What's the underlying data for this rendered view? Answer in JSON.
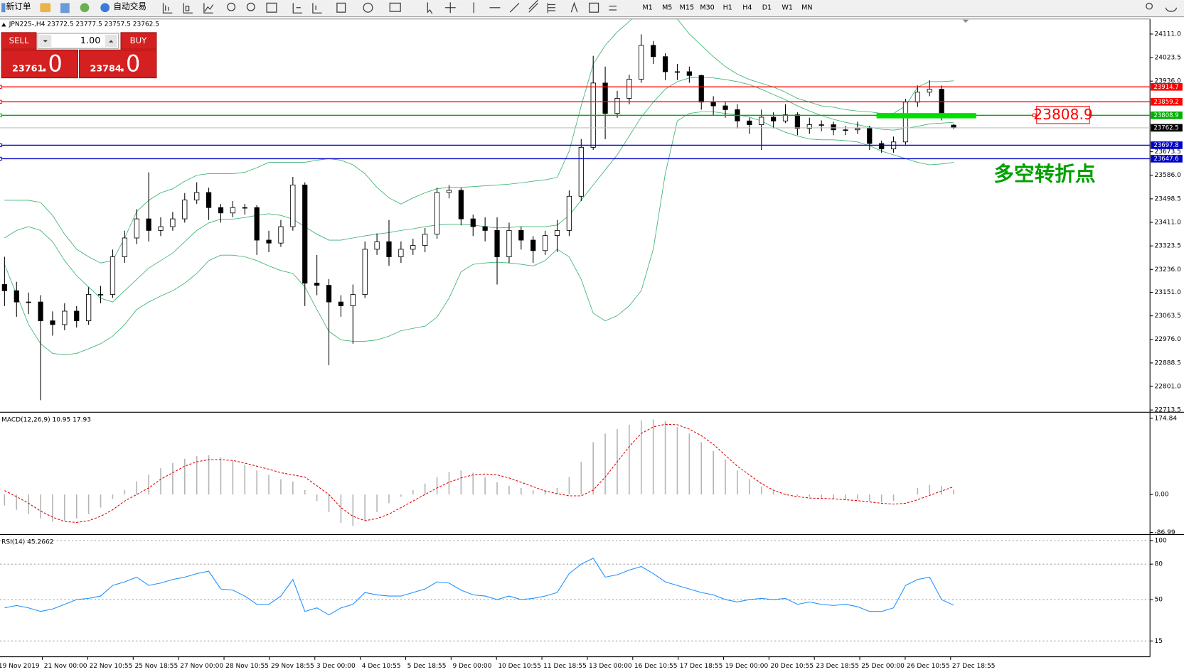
{
  "toolbar": {
    "new_order": "新订单",
    "auto_trade": "自动交易",
    "timeframes": [
      "M1",
      "M5",
      "M15",
      "M30",
      "H1",
      "H4",
      "D1",
      "W1",
      "MN"
    ]
  },
  "trade_panel": {
    "sell": "SELL",
    "lot": "1.00",
    "buy": "BUY",
    "bid_main": "23761",
    "bid_fraction": ".0",
    "ask_main": "23784",
    "ask_fraction": ".0"
  },
  "time_axis": [
    "19 Nov 2019",
    "21 Nov 00:00",
    "22 Nov 10:55",
    "25 Nov 18:55",
    "27 Nov 00:00",
    "28 Nov 10:55",
    "29 Nov 18:55",
    "3 Dec 00:00",
    "4 Dec 10:55",
    "5 Dec 18:55",
    "9 Dec 00:00",
    "10 Dec 10:55",
    "11 Dec 18:55",
    "13 Dec 00:00",
    "16 Dec 10:55",
    "17 Dec 18:55",
    "19 Dec 00:00",
    "20 Dec 10:55",
    "23 Dec 18:55",
    "25 Dec 00:00",
    "26 Dec 10:55",
    "27 Dec 18:55"
  ],
  "chart_data": [
    {
      "type": "candlestick",
      "title": "JPN225-,H4  23772.5 23777.5 23757.5 23762.5",
      "up_color": "#ffffff",
      "down_color": "#000000",
      "open": [
        23180,
        23157,
        23115,
        23115,
        23045,
        23031,
        23081,
        23045,
        23143,
        23143,
        23283,
        23353,
        23424,
        23381,
        23395,
        23424,
        23494,
        23522,
        23466,
        23446,
        23466,
        23466,
        23345,
        23334,
        23395,
        23550,
        23185,
        23177,
        23115,
        23101,
        23143,
        23311,
        23339,
        23283,
        23311,
        23325,
        23367,
        23522,
        23530,
        23424,
        23395,
        23381,
        23283,
        23381,
        23345,
        23306,
        23362,
        23381,
        23508,
        23690,
        23929,
        23816,
        23872,
        23943,
        24069,
        24027,
        23971,
        23971,
        23957,
        23858,
        23844,
        23830,
        23788,
        23774,
        23802,
        23788,
        23811,
        23760,
        23774,
        23774,
        23755,
        23755,
        23760,
        23704,
        23684,
        23710,
        23858,
        23895,
        23906,
        23772.5
      ],
      "high": [
        23283,
        23190,
        23150,
        23140,
        23080,
        23110,
        23100,
        23170,
        23175,
        23310,
        23380,
        23460,
        23597,
        23430,
        23450,
        23520,
        23560,
        23540,
        23480,
        23490,
        23480,
        23475,
        23380,
        23420,
        23580,
        23560,
        23290,
        23200,
        23140,
        23180,
        23340,
        23370,
        23420,
        23340,
        23350,
        23390,
        23540,
        23550,
        23540,
        23440,
        23430,
        23430,
        23410,
        23395,
        23360,
        23380,
        23420,
        23530,
        23720,
        24030,
        23990,
        23900,
        23960,
        24110,
        24085,
        24040,
        24000,
        23990,
        23960,
        23880,
        23860,
        23850,
        23800,
        23830,
        23820,
        23850,
        23820,
        23800,
        23790,
        23785,
        23770,
        23785,
        23770,
        23715,
        23730,
        23870,
        23920,
        23940,
        23920,
        23777.5
      ],
      "low": [
        23100,
        23060,
        23070,
        22750,
        22990,
        23010,
        23020,
        23030,
        23110,
        23130,
        23260,
        23330,
        23340,
        23360,
        23380,
        23410,
        23480,
        23420,
        23410,
        23430,
        23440,
        23290,
        23300,
        23320,
        23380,
        23100,
        23140,
        22880,
        23060,
        22960,
        23130,
        23290,
        23250,
        23260,
        23290,
        23300,
        23350,
        23500,
        23400,
        23360,
        23340,
        23180,
        23260,
        23310,
        23260,
        23290,
        23300,
        23360,
        23490,
        23680,
        23720,
        23800,
        23850,
        23930,
        24000,
        23940,
        23940,
        23930,
        23830,
        23810,
        23800,
        23760,
        23740,
        23680,
        23760,
        23780,
        23735,
        23740,
        23750,
        23735,
        23735,
        23740,
        23680,
        23670,
        23670,
        23700,
        23840,
        23880,
        23790,
        23757.5
      ],
      "close": [
        23157,
        23115,
        23115,
        23045,
        23031,
        23081,
        23045,
        23143,
        23143,
        23283,
        23353,
        23424,
        23381,
        23395,
        23424,
        23494,
        23522,
        23466,
        23446,
        23466,
        23466,
        23345,
        23334,
        23395,
        23550,
        23185,
        23177,
        23115,
        23101,
        23143,
        23311,
        23339,
        23283,
        23311,
        23325,
        23367,
        23522,
        23530,
        23424,
        23395,
        23381,
        23283,
        23381,
        23345,
        23306,
        23362,
        23381,
        23508,
        23690,
        23929,
        23816,
        23872,
        23943,
        24069,
        24027,
        23971,
        23971,
        23957,
        23858,
        23844,
        23830,
        23788,
        23774,
        23802,
        23788,
        23811,
        23760,
        23774,
        23774,
        23755,
        23755,
        23760,
        23704,
        23684,
        23710,
        23858,
        23895,
        23906,
        23816,
        23762.5
      ],
      "bands": [
        {
          "color": "#3cb371",
          "values": [
            23493,
            23493,
            23493,
            23485,
            23437,
            23367,
            23311,
            23283,
            23260,
            23269,
            23353,
            23451,
            23493,
            23521,
            23536,
            23564,
            23586,
            23592,
            23592,
            23592,
            23597,
            23614,
            23634,
            23634,
            23634,
            23634,
            23642,
            23648,
            23642,
            23625,
            23592,
            23541,
            23502,
            23479,
            23502,
            23521,
            23536,
            23541,
            23541,
            23544,
            23547,
            23550,
            23553,
            23558,
            23564,
            23569,
            23578,
            23676,
            23844,
            23999,
            24069,
            24119,
            24158,
            24195,
            24223,
            24209,
            24167,
            24111,
            24069,
            24027,
            23990,
            23962,
            23942,
            23928,
            23914,
            23895,
            23872,
            23858,
            23844,
            23839,
            23830,
            23825,
            23822,
            23816,
            23816,
            23844,
            23914,
            23934,
            23934,
            23937
          ]
        },
        {
          "color": "#3cb371",
          "values": [
            23353,
            23381,
            23395,
            23381,
            23339,
            23269,
            23213,
            23171,
            23129,
            23115,
            23157,
            23199,
            23241,
            23269,
            23297,
            23339,
            23381,
            23409,
            23423,
            23423,
            23429,
            23437,
            23443,
            23437,
            23423,
            23395,
            23367,
            23345,
            23345,
            23353,
            23361,
            23367,
            23373,
            23381,
            23387,
            23395,
            23401,
            23404,
            23404,
            23401,
            23395,
            23390,
            23392,
            23395,
            23395,
            23395,
            23401,
            23437,
            23493,
            23550,
            23606,
            23662,
            23732,
            23802,
            23858,
            23906,
            23934,
            23948,
            23951,
            23948,
            23942,
            23934,
            23923,
            23906,
            23886,
            23867,
            23844,
            23825,
            23808,
            23794,
            23783,
            23774,
            23765,
            23757,
            23754,
            23760,
            23768,
            23777,
            23780,
            23783
          ]
        },
        {
          "color": "#3cb371",
          "values": [
            23255,
            23143,
            23031,
            22960,
            22924,
            22918,
            22924,
            22941,
            22960,
            22988,
            23031,
            23087,
            23115,
            23137,
            23157,
            23185,
            23221,
            23269,
            23289,
            23289,
            23283,
            23269,
            23249,
            23232,
            23221,
            23171,
            23087,
            23006,
            22974,
            22969,
            22969,
            22974,
            22988,
            23008,
            23017,
            23025,
            23059,
            23129,
            23227,
            23255,
            23260,
            23263,
            23260,
            23255,
            23249,
            23269,
            23311,
            23283,
            23199,
            23073,
            23045,
            23064,
            23101,
            23157,
            23311,
            23592,
            23788,
            23816,
            23822,
            23822,
            23816,
            23811,
            23802,
            23788,
            23765,
            23746,
            23732,
            23721,
            23718,
            23718,
            23715,
            23710,
            23696,
            23676,
            23662,
            23648,
            23634,
            23625,
            23628,
            23634
          ]
        }
      ],
      "levels": [
        {
          "value": 23914.7,
          "color": "#ff0000"
        },
        {
          "value": 23859.2,
          "color": "#ff0000"
        },
        {
          "value": 23808.9,
          "color": "#00b000"
        },
        {
          "value": 23762.5,
          "color": "#000000"
        },
        {
          "value": 23697.8,
          "color": "#0000c8"
        },
        {
          "value": 23647.6,
          "color": "#0000c8"
        }
      ],
      "annotation": "多空转折点",
      "annotation_color": "#00a000",
      "ylim": [
        22708,
        24167
      ],
      "yticks": [
        {
          "value": 24111,
          "label": "24111.0"
        },
        {
          "value": 24023.5,
          "label": "24023.5"
        },
        {
          "value": 23936,
          "label": "23936.0"
        },
        {
          "value": 23673.5,
          "label": "23673.5"
        },
        {
          "value": 23586,
          "label": "23586.0"
        },
        {
          "value": 23498.5,
          "label": "23498.5"
        },
        {
          "value": 23411,
          "label": "23411.0"
        },
        {
          "value": 23323.5,
          "label": "23323.5"
        },
        {
          "value": 23236,
          "label": "23236.0"
        },
        {
          "value": 23151,
          "label": "23151.0"
        },
        {
          "value": 23063.5,
          "label": "23063.5"
        },
        {
          "value": 22976,
          "label": "22976.0"
        },
        {
          "value": 22888.5,
          "label": "22888.5"
        },
        {
          "value": 22801,
          "label": "22801.0"
        },
        {
          "value": 22713.5,
          "label": "22713.5"
        }
      ]
    },
    {
      "type": "macd",
      "title": "MACD(12,26,9) 10.95 17.93",
      "histogram": {
        "color": "#b4b4b4",
        "values": [
          -25,
          -35,
          -45,
          -55,
          -62,
          -60,
          -55,
          -45,
          -30,
          -10,
          10,
          30,
          45,
          60,
          72,
          82,
          88,
          90,
          85,
          78,
          68,
          55,
          45,
          35,
          30,
          10,
          -15,
          -40,
          -65,
          -72,
          -60,
          -40,
          -20,
          -5,
          10,
          25,
          40,
          52,
          55,
          50,
          40,
          28,
          20,
          15,
          10,
          10,
          15,
          40,
          75,
          120,
          140,
          150,
          160,
          170,
          172,
          168,
          155,
          140,
          120,
          100,
          80,
          55,
          35,
          18,
          8,
          2,
          -3,
          -5,
          -8,
          -10,
          -12,
          -12,
          -15,
          -18,
          -15,
          0,
          15,
          22,
          20,
          10.95
        ]
      },
      "signal": {
        "color": "#e00000",
        "values": [
          9,
          -5,
          -20,
          -38,
          -52,
          -62,
          -64,
          -60,
          -50,
          -35,
          -15,
          0,
          15,
          35,
          50,
          65,
          75,
          80,
          80,
          78,
          72,
          65,
          58,
          50,
          45,
          40,
          20,
          0,
          -30,
          -50,
          -60,
          -55,
          -45,
          -30,
          -15,
          0,
          15,
          28,
          38,
          45,
          47,
          45,
          38,
          28,
          18,
          8,
          2,
          -3,
          -3,
          10,
          40,
          75,
          110,
          140,
          155,
          161,
          160,
          150,
          135,
          115,
          90,
          65,
          45,
          25,
          10,
          0,
          -5,
          -8,
          -9,
          -10,
          -12,
          -14,
          -17,
          -20,
          -22,
          -20,
          -12,
          -2,
          8,
          17.93
        ]
      },
      "ylim": [
        -90,
        185.2
      ],
      "yticks": [
        174.84,
        {
          "value": 0,
          "label": "0.00"
        },
        -86.99
      ]
    },
    {
      "type": "line",
      "title": "RSI(14) 45.2662",
      "grid": true,
      "series": [
        {
          "color": "#1e90ff",
          "values": [
            43,
            45,
            43,
            40,
            42,
            46,
            50,
            51,
            53,
            62,
            65,
            69,
            62,
            64,
            67,
            69,
            72,
            74,
            59,
            58,
            53,
            46,
            46,
            53,
            67,
            40,
            43,
            37,
            43,
            46,
            56,
            54,
            53,
            53,
            56,
            59,
            65,
            64,
            58,
            54,
            53,
            50,
            53,
            50,
            51,
            53,
            56,
            72,
            80,
            85,
            69,
            71,
            75,
            78,
            72,
            65,
            62,
            59,
            56,
            54,
            50,
            48,
            50,
            51,
            50,
            51,
            46,
            48,
            46,
            45,
            46,
            44,
            40,
            40,
            43,
            62,
            67,
            69,
            50,
            45.2662
          ]
        }
      ],
      "ylim": [
        1.6,
        103.8
      ],
      "yticks": [
        100,
        80,
        50,
        15
      ]
    }
  ]
}
